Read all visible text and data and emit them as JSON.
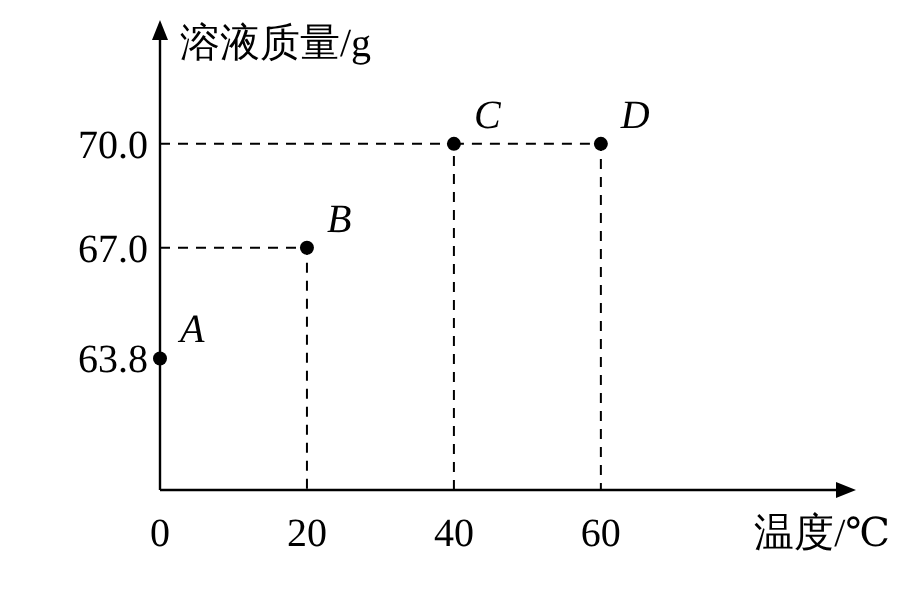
{
  "chart_data": {
    "type": "scatter",
    "xlabel": "温度/℃",
    "ylabel": "溶液质量/g",
    "xlim": [
      0,
      92
    ],
    "xticks": [
      0,
      20,
      40,
      60
    ],
    "ylim": [
      60,
      73
    ],
    "yticks": [
      63.8,
      {
        "value": 67,
        "label": "67.0"
      },
      {
        "value": 70,
        "label": "70.0"
      }
    ],
    "series": [
      {
        "color": "#000000",
        "marker": "circle",
        "x": [
          0,
          20,
          40,
          60
        ],
        "values": [
          63.8,
          67.0,
          70.0,
          70.0
        ]
      },
      {
        "type": "line",
        "color": "#000000",
        "line_style": "dashed",
        "marker": "none",
        "x": [
          0,
          20,
          20
        ],
        "values": [
          67.0,
          67.0,
          60
        ]
      },
      {
        "type": "line",
        "color": "#000000",
        "line_style": "dashed",
        "marker": "none",
        "x": [
          0,
          40,
          40
        ],
        "values": [
          70.0,
          70.0,
          60
        ]
      },
      {
        "type": "line",
        "color": "#000000",
        "line_style": "dashed",
        "marker": "none",
        "x": [
          40,
          60,
          60
        ],
        "values": [
          70.0,
          70.0,
          60
        ]
      }
    ],
    "annotations": [
      {
        "text": "A",
        "x": 0,
        "y": 63.8
      },
      {
        "text": "B",
        "x": 20,
        "y": 67.0
      },
      {
        "text": "C",
        "x": 40,
        "y": 70.0
      },
      {
        "text": "D",
        "x": 60,
        "y": 70.0
      }
    ],
    "grid": false
  }
}
